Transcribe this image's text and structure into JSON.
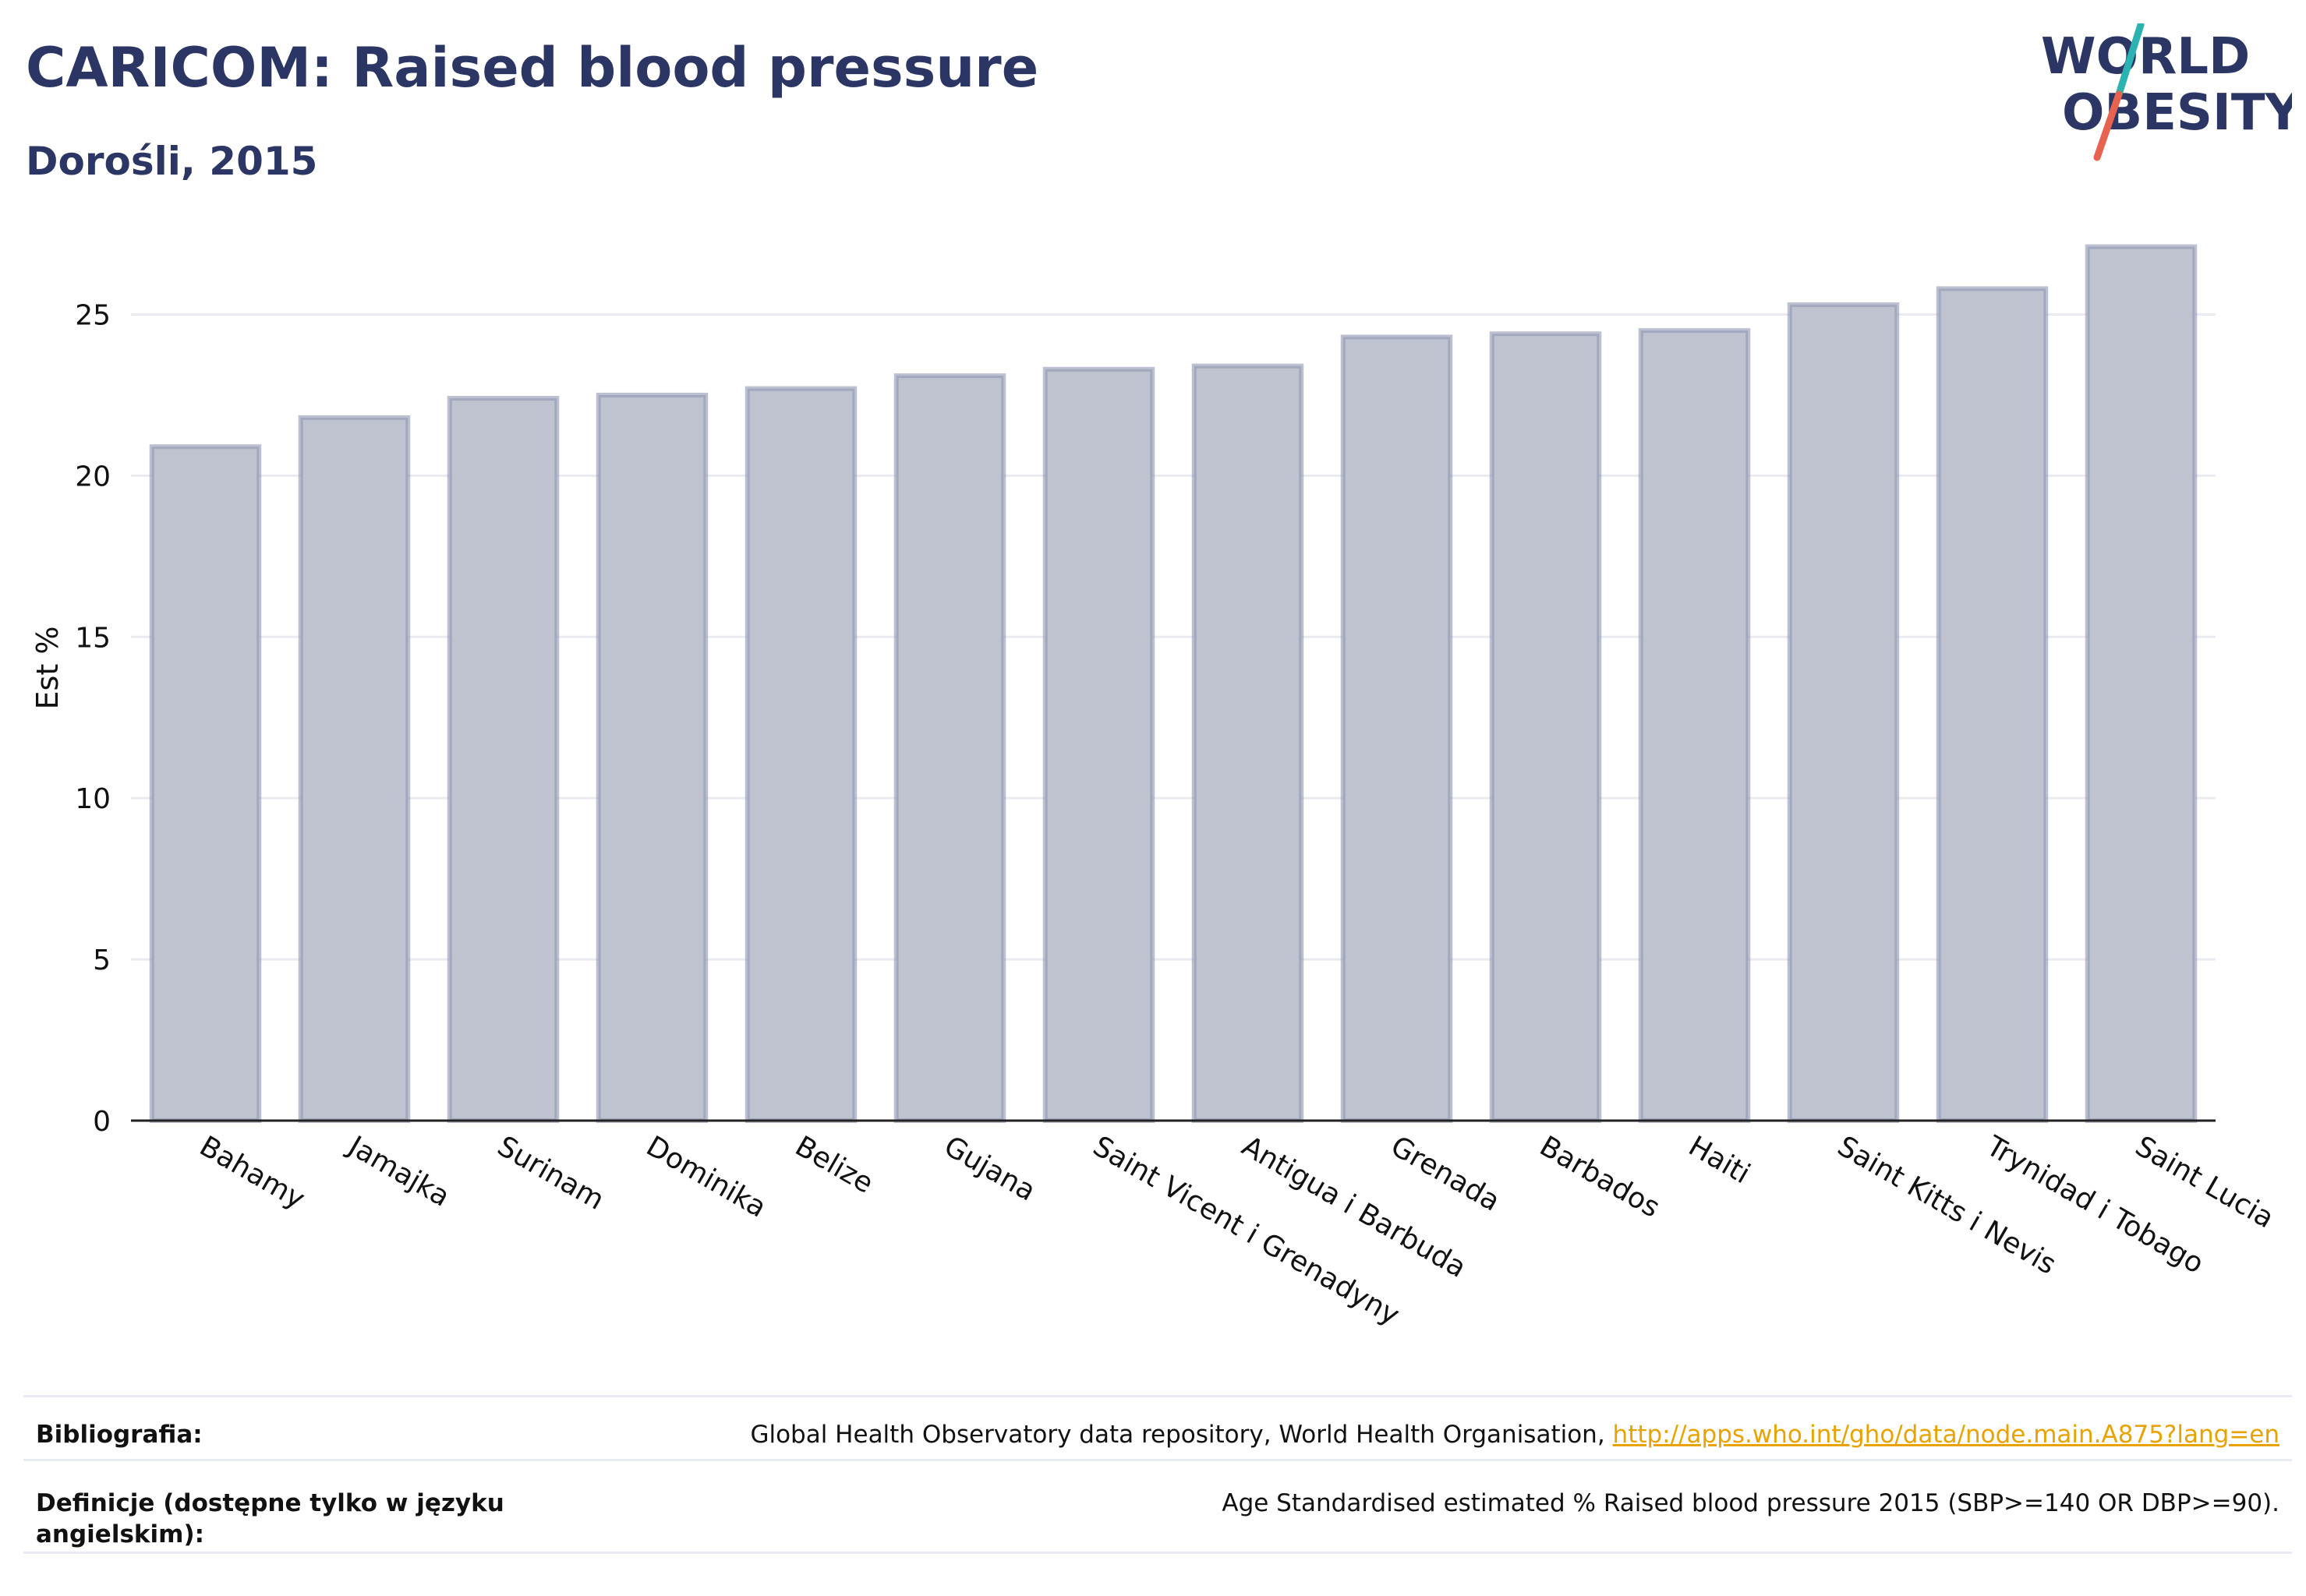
{
  "header": {
    "title": "CARICOM: Raised blood pressure",
    "subtitle": "Dorośli, 2015"
  },
  "logo": {
    "line1": "WORLD",
    "line2": "OBESITY",
    "colors": {
      "text": "#2b3664",
      "slash_top": "#2bb3b1",
      "slash_bottom": "#e8634f"
    }
  },
  "chart_data": {
    "type": "bar",
    "title": "",
    "xlabel": "",
    "ylabel": "Est %",
    "ylim": [
      0,
      27.5
    ],
    "yticks": [
      0,
      5,
      10,
      15,
      20,
      25
    ],
    "grid": true,
    "bar_color": "#bfc3d0",
    "bar_edge_color": "#8f96b0",
    "categories": [
      "Bahamy",
      "Jamajka",
      "Surinam",
      "Dominika",
      "Belize",
      "Gujana",
      "Saint Vicent i Grenadyny",
      "Antigua i Barbuda",
      "Grenada",
      "Barbados",
      "Haiti",
      "Saint Kitts i Nevis",
      "Trynidad i Tobago",
      "Saint Lucia"
    ],
    "values": [
      20.9,
      21.8,
      22.4,
      22.5,
      22.7,
      23.1,
      23.3,
      23.4,
      24.3,
      24.4,
      24.5,
      25.3,
      25.8,
      27.1
    ]
  },
  "footer": {
    "bibliography_label": "Bibliografia:",
    "bibliography_text": "Global Health Observatory data repository, World Health Organisation, ",
    "bibliography_link": "http://apps.who.int/gho/data/node.main.A875?lang=en",
    "definitions_label": "Definicje (dostępne tylko w języku angielskim):",
    "definitions_text": "Age Standardised estimated % Raised blood pressure 2015 (SBP>=140 OR DBP>=90)."
  }
}
